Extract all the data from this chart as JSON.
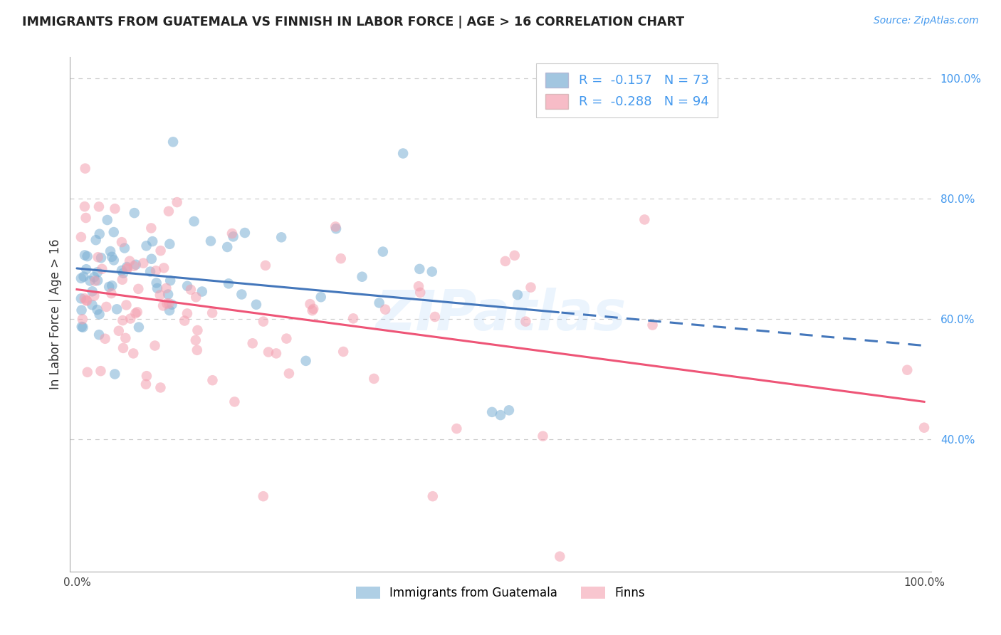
{
  "title": "IMMIGRANTS FROM GUATEMALA VS FINNISH IN LABOR FORCE | AGE > 16 CORRELATION CHART",
  "source": "Source: ZipAtlas.com",
  "ylabel": "In Labor Force | Age > 16",
  "legend_r1": "-0.157",
  "legend_n1": "73",
  "legend_r2": "-0.288",
  "legend_n2": "94",
  "blue_color": "#7BAFD4",
  "pink_color": "#F4A0B0",
  "blue_line_color": "#4477BB",
  "pink_line_color": "#EE5577",
  "label1": "Immigrants from Guatemala",
  "label2": "Finns",
  "watermark": "ZIPatlas",
  "background_color": "#ffffff",
  "grid_color": "#cccccc",
  "right_tick_color": "#4499EE",
  "ylim_data": [
    0.0,
    1.0
  ],
  "y_ticks": [
    0.4,
    0.6,
    0.8,
    1.0
  ],
  "y_tick_labels": [
    "40.0%",
    "60.0%",
    "80.0%",
    "100.0%"
  ],
  "x_ticks": [
    0.0,
    0.2,
    0.4,
    0.6,
    0.8,
    1.0
  ],
  "x_tick_labels": [
    "0.0%",
    "",
    "",
    "",
    "",
    "100.0%"
  ]
}
